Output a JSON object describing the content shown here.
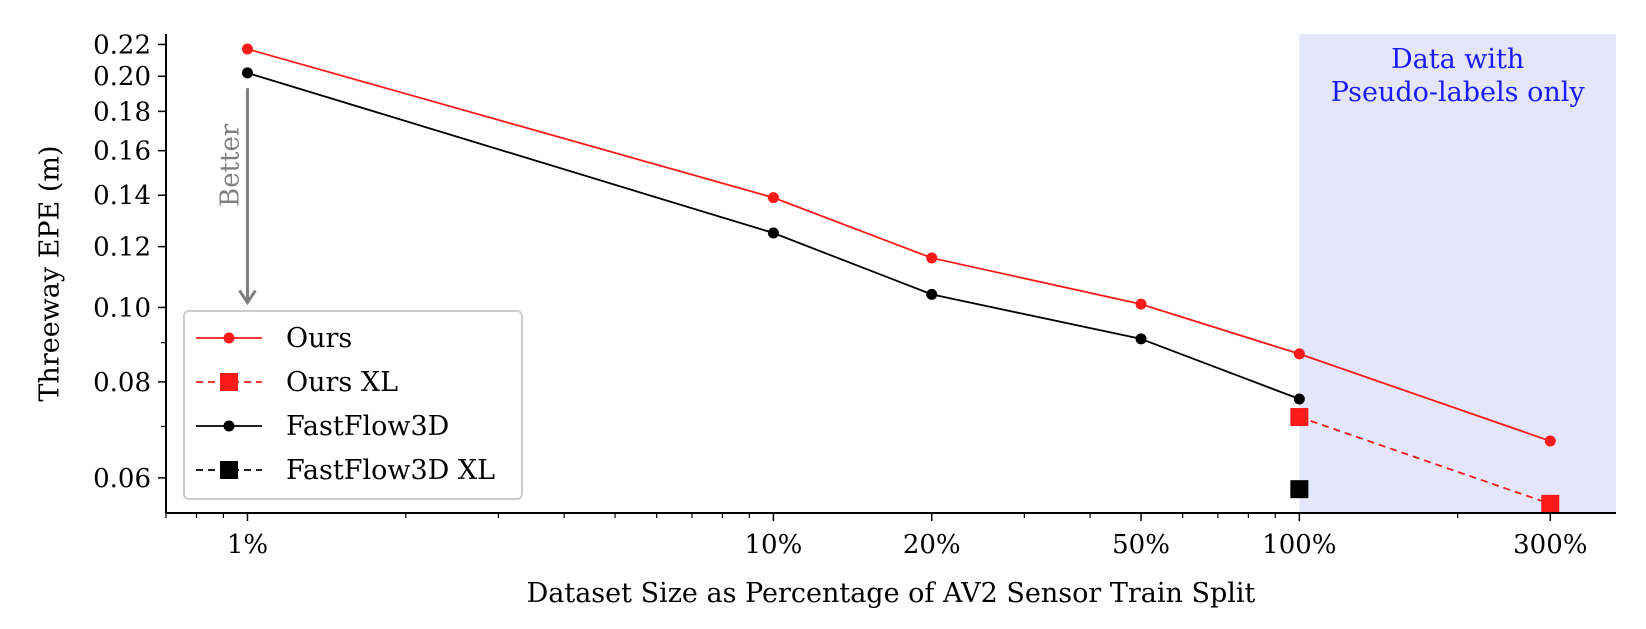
{
  "chart_data": {
    "type": "line",
    "xlabel": "Dataset Size as Percentage of AV2 Sensor Train Split",
    "ylabel": "Threeway EPE (m)",
    "x_scale": "log",
    "y_scale": "log",
    "xlim": [
      0.7,
      400
    ],
    "ylim": [
      0.054,
      0.227
    ],
    "x_ticks": [
      1,
      10,
      20,
      50,
      100,
      300
    ],
    "x_tick_labels": [
      "1%",
      "10%",
      "20%",
      "50%",
      "100%",
      "300%"
    ],
    "y_ticks": [
      0.06,
      0.08,
      0.1,
      0.12,
      0.14,
      0.16,
      0.18,
      0.2,
      0.22
    ],
    "y_tick_labels": [
      "0.06",
      "0.08",
      "0.10",
      "0.12",
      "0.14",
      "0.16",
      "0.18",
      "0.20",
      "0.22"
    ],
    "grid": false,
    "legend_position": "bottom-left",
    "shaded_region": {
      "x_from": 100,
      "x_to": 400,
      "label_lines": [
        "Data with",
        "Pseudo-labels only"
      ],
      "color": "#e6e6fa",
      "label_color": "#1a1aff"
    },
    "annotation": {
      "text": "Better",
      "color": "#808080"
    },
    "series": [
      {
        "name": "Ours",
        "color": "#ff1a1a",
        "linestyle": "solid",
        "marker": "circle",
        "x": [
          1,
          10,
          20,
          50,
          100,
          300
        ],
        "y": [
          0.217,
          0.139,
          0.116,
          0.101,
          0.087,
          0.067
        ]
      },
      {
        "name": "Ours XL",
        "color": "#ff1a1a",
        "linestyle": "dashed",
        "marker": "square",
        "x": [
          100,
          300
        ],
        "y": [
          0.072,
          0.0555
        ]
      },
      {
        "name": "FastFlow3D",
        "color": "#000000",
        "linestyle": "solid",
        "marker": "circle",
        "x": [
          1,
          10,
          20,
          50,
          100
        ],
        "y": [
          0.202,
          0.125,
          0.104,
          0.091,
          0.076
        ]
      },
      {
        "name": "FastFlow3D XL",
        "color": "#000000",
        "linestyle": "dashed",
        "marker": "square",
        "x": [
          100
        ],
        "y": [
          0.058
        ]
      }
    ]
  }
}
